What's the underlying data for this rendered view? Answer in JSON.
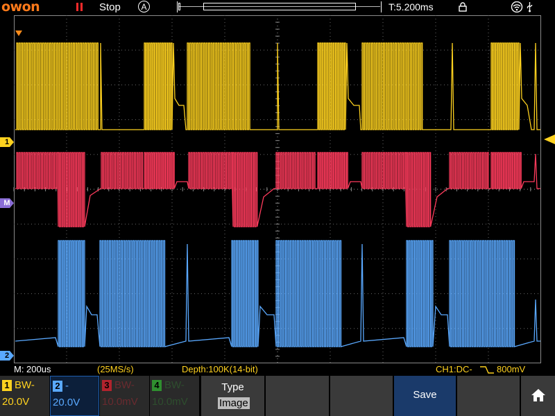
{
  "topbar": {
    "brand": "owon",
    "run_icon": "pause-bars-icon",
    "run_status": "Stop",
    "trigger_mode": "A",
    "trigger_time": "T:5.200ms",
    "lock_icon": "lock-icon",
    "wifi_icon": "wifi-icon",
    "usb_icon": "usb-icon"
  },
  "markers": {
    "ch1": "1",
    "math": "M",
    "ch2": "2"
  },
  "colors": {
    "ch1": "#ffd21f",
    "ch2": "#5aa9ff",
    "ch3": "#b2232d",
    "ch4": "#2f8f2f",
    "math": "#ff3b5c",
    "brand": "#ff7a1a"
  },
  "status": {
    "timebase": "M: 200us",
    "samplerate": "(25MS/s)",
    "depth": "Depth:100K(14-bit)",
    "coupling": "CH1:DC-",
    "trigger_level": "800mV"
  },
  "channels": [
    {
      "num": "1",
      "bw": "BW-",
      "scale": "20.0V",
      "active": false
    },
    {
      "num": "2",
      "bw": "-",
      "scale": "20.0V",
      "active": true
    },
    {
      "num": "3",
      "bw": "BW-",
      "scale": "10.0mV",
      "active": false
    },
    {
      "num": "4",
      "bw": "BW-",
      "scale": "10.0mV",
      "active": false
    }
  ],
  "menu": {
    "type_label": "Type",
    "type_value": "Image",
    "save_label": "Save",
    "home_icon": "home-icon"
  }
}
